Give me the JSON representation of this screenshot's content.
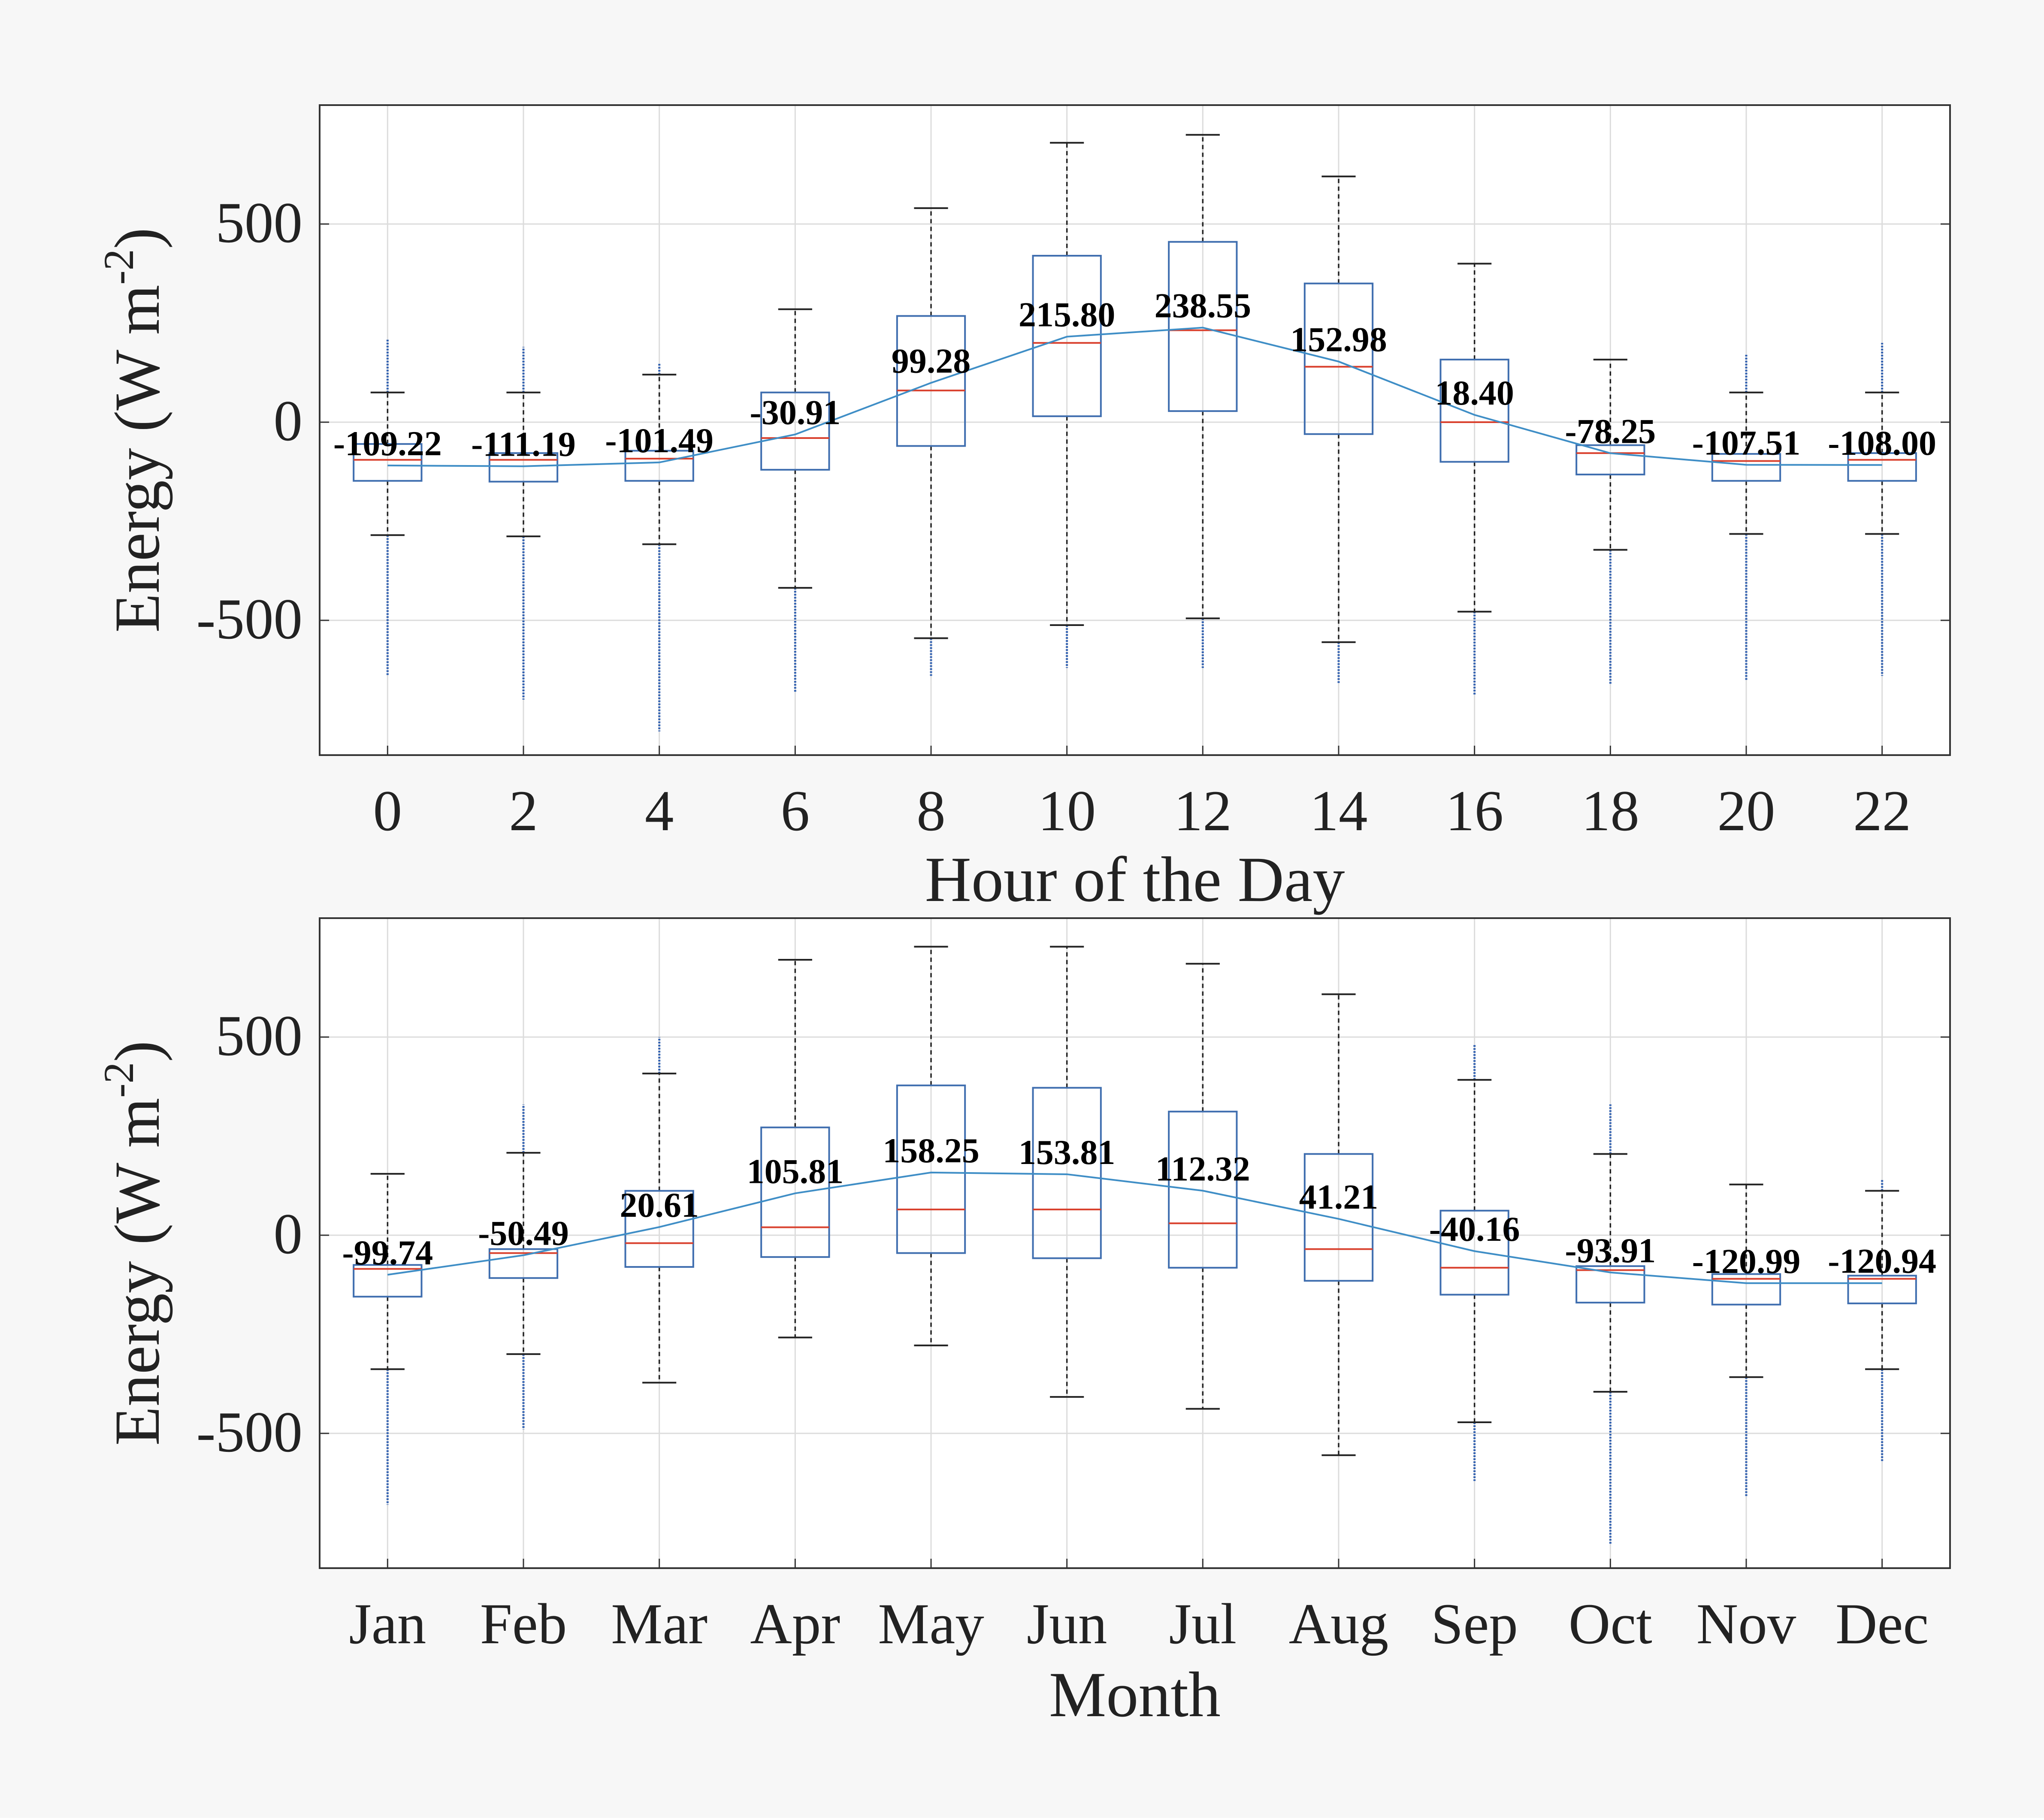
{
  "chart_data": [
    {
      "type": "box",
      "xlabel": "Hour of the Day",
      "ylabel": "Energy (W m",
      "ylabel_sup": "-2",
      "ylabel_close": ")",
      "ylim": [
        -840,
        800
      ],
      "yticks": [
        -500,
        0,
        500
      ],
      "grid": true,
      "categories": [
        "0",
        "2",
        "4",
        "6",
        "8",
        "10",
        "12",
        "14",
        "16",
        "18",
        "20",
        "22"
      ],
      "mean_labels": [
        "-109.22",
        "-111.19",
        "-101.49",
        "-30.91",
        "99.28",
        "215.80",
        "238.55",
        "152.98",
        "18.40",
        "-78.25",
        "-107.51",
        "-108.00"
      ],
      "series": [
        {
          "name": "mean",
          "values": [
            -109.22,
            -111.19,
            -101.49,
            -30.91,
            99.28,
            215.8,
            238.55,
            152.98,
            18.4,
            -78.25,
            -107.51,
            -108.0
          ]
        },
        {
          "name": "median",
          "values": [
            -95,
            -95,
            -92,
            -40,
            80,
            200,
            232,
            140,
            0,
            -78,
            -98,
            -95
          ]
        },
        {
          "name": "q1",
          "values": [
            -148,
            -150,
            -148,
            -120,
            -60,
            15,
            28,
            -30,
            -100,
            -132,
            -148,
            -148
          ]
        },
        {
          "name": "q3",
          "values": [
            -55,
            -78,
            -72,
            75,
            268,
            420,
            455,
            350,
            158,
            -58,
            -80,
            -78
          ]
        },
        {
          "name": "whisker_low",
          "values": [
            -285,
            -288,
            -308,
            -418,
            -545,
            -512,
            -495,
            -555,
            -478,
            -322,
            -282,
            -282
          ]
        },
        {
          "name": "whisker_high",
          "values": [
            75,
            75,
            120,
            285,
            540,
            705,
            725,
            620,
            400,
            158,
            75,
            75
          ]
        },
        {
          "name": "outlier_low",
          "values": [
            -640,
            -700,
            -780,
            -680,
            -640,
            -620,
            -620,
            -660,
            -690,
            -660,
            -650,
            -640
          ]
        },
        {
          "name": "outlier_high",
          "values": [
            210,
            190,
            150,
            null,
            null,
            null,
            null,
            null,
            null,
            null,
            170,
            200
          ]
        }
      ]
    },
    {
      "type": "box",
      "xlabel": "Month",
      "ylabel": "Energy (W m",
      "ylabel_sup": "-2",
      "ylabel_close": ")",
      "ylim": [
        -840,
        800
      ],
      "yticks": [
        -500,
        0,
        500
      ],
      "grid": true,
      "categories": [
        "Jan",
        "Feb",
        "Mar",
        "Apr",
        "May",
        "Jun",
        "Jul",
        "Aug",
        "Sep",
        "Oct",
        "Nov",
        "Dec"
      ],
      "mean_labels": [
        "-99.74",
        "-50.49",
        "20.61",
        "105.81",
        "158.25",
        "153.81",
        "112.32",
        "41.21",
        "-40.16",
        "-93.91",
        "-120.99",
        "-120.94"
      ],
      "series": [
        {
          "name": "mean",
          "values": [
            -99.74,
            -50.49,
            20.61,
            105.81,
            158.25,
            153.81,
            112.32,
            41.21,
            -40.16,
            -93.91,
            -120.99,
            -120.94
          ]
        },
        {
          "name": "median",
          "values": [
            -85,
            -45,
            -20,
            20,
            65,
            65,
            30,
            -35,
            -82,
            -88,
            -110,
            -110
          ]
        },
        {
          "name": "q1",
          "values": [
            -155,
            -108,
            -80,
            -55,
            -45,
            -58,
            -82,
            -115,
            -150,
            -170,
            -175,
            -172
          ]
        },
        {
          "name": "q3",
          "values": [
            -75,
            -35,
            112,
            272,
            378,
            372,
            312,
            205,
            62,
            -78,
            -98,
            -102
          ]
        },
        {
          "name": "whisker_low",
          "values": [
            -338,
            -300,
            -372,
            -258,
            -278,
            -408,
            -438,
            -555,
            -472,
            -395,
            -358,
            -338
          ]
        },
        {
          "name": "whisker_high",
          "values": [
            155,
            208,
            408,
            695,
            728,
            728,
            685,
            608,
            392,
            205,
            128,
            112
          ]
        },
        {
          "name": "outlier_low",
          "values": [
            -680,
            -490,
            null,
            null,
            null,
            null,
            null,
            null,
            -620,
            -780,
            -660,
            -570
          ]
        },
        {
          "name": "outlier_high",
          "values": [
            null,
            330,
            500,
            null,
            null,
            null,
            null,
            null,
            480,
            330,
            null,
            140
          ]
        }
      ]
    }
  ]
}
